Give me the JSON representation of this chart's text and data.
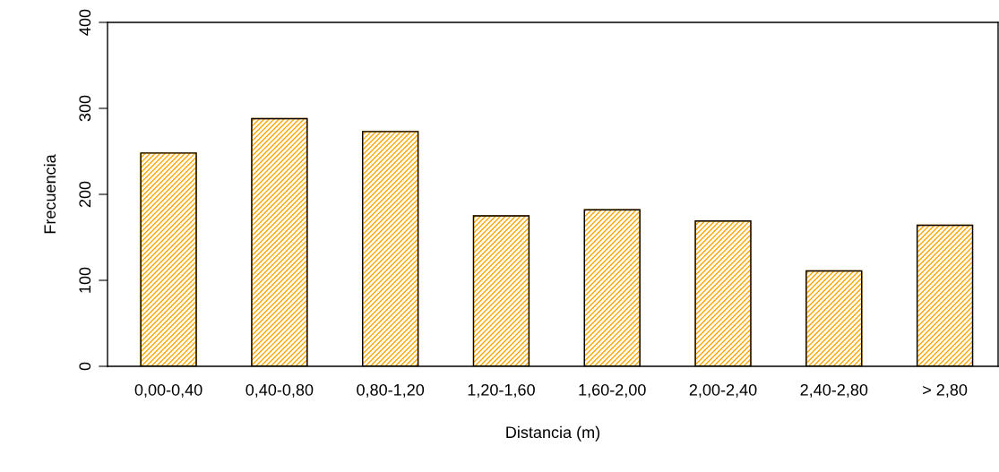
{
  "chart_data": {
    "type": "bar",
    "xlabel": "Distancia (m)",
    "ylabel": "Frecuencia",
    "categories": [
      "0,00-0,40",
      "0,40-0,80",
      "0,80-1,20",
      "1,20-1,60",
      "1,60-2,00",
      "2,00-2,40",
      "2,40-2,80",
      "> 2,80"
    ],
    "values": [
      248,
      288,
      273,
      175,
      182,
      169,
      111,
      164
    ],
    "color": "#ffa500",
    "ylim": [
      0,
      400
    ],
    "yticks": [
      0,
      100,
      200,
      300,
      400
    ],
    "grid": false,
    "legend": false
  }
}
